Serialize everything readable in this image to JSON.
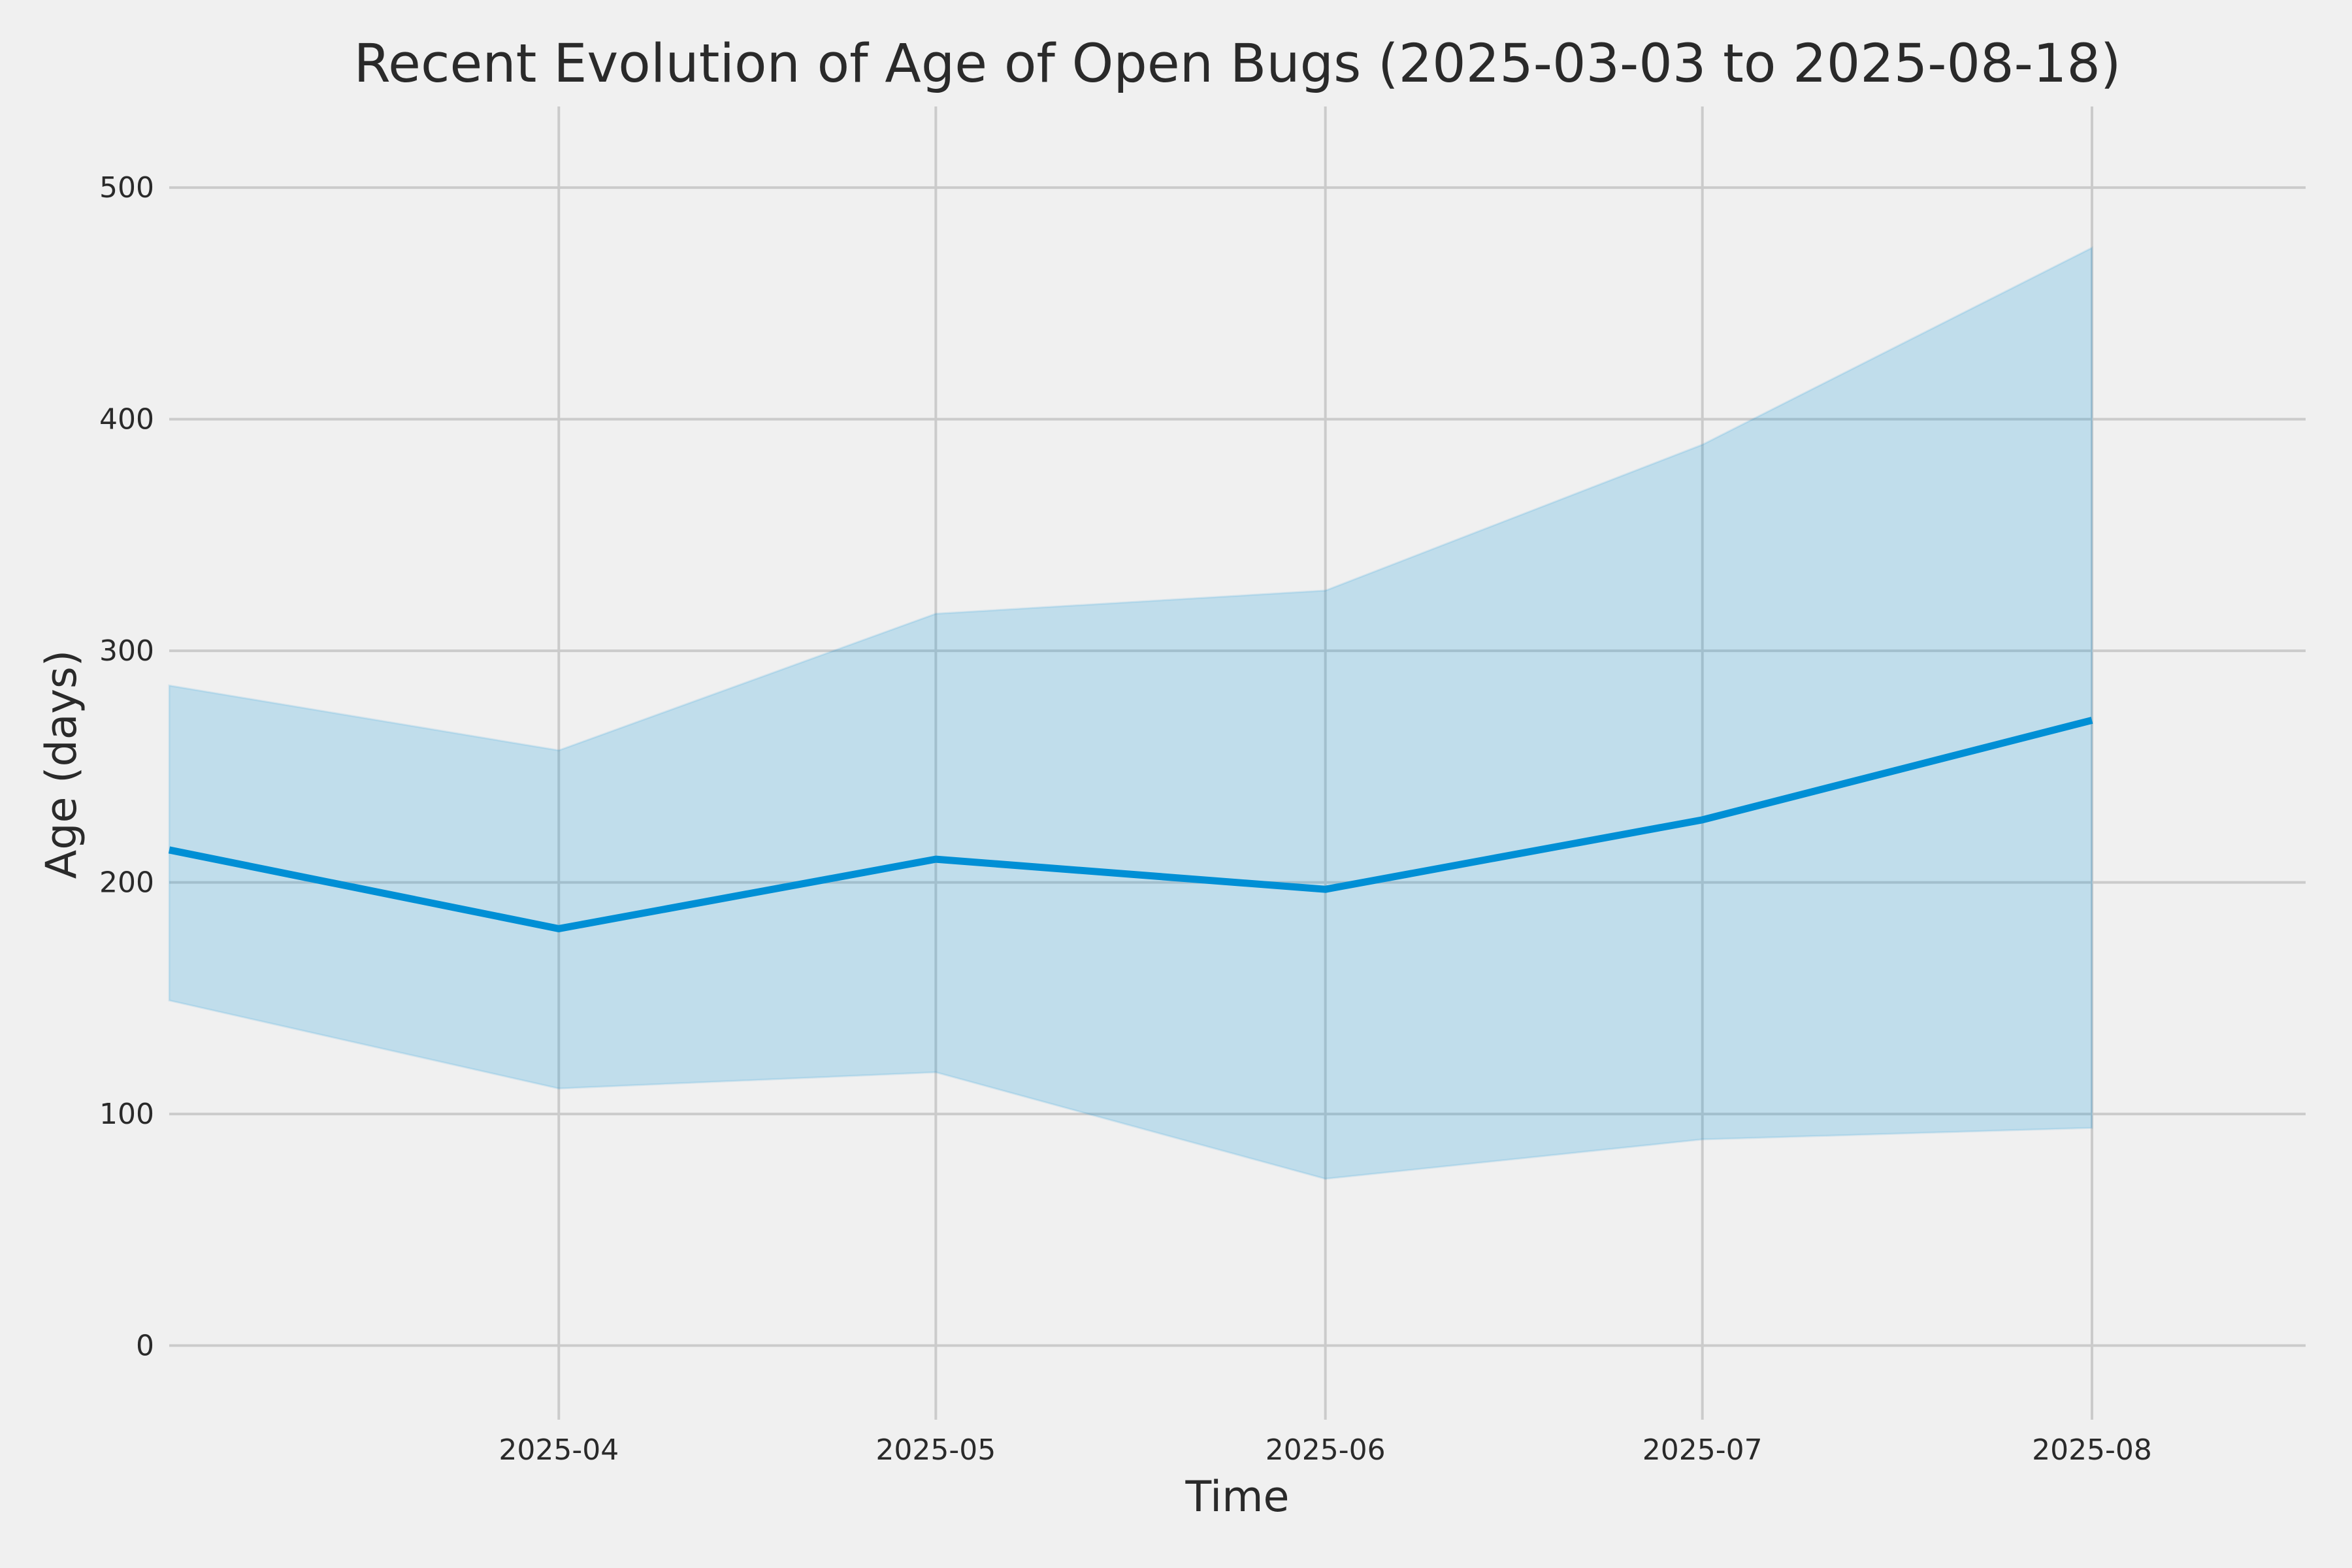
{
  "chart_data": {
    "type": "line",
    "title": "Recent Evolution of Age of Open Bugs (2025-03-03 to 2025-08-18)",
    "xlabel": "Time",
    "ylabel": "Age (days)",
    "x": [
      "2025-03-01",
      "2025-04-01",
      "2025-05-01",
      "2025-06-01",
      "2025-07-01",
      "2025-08-01"
    ],
    "xlim": [
      "2025-03-01",
      "2025-08-18"
    ],
    "ylim": [
      -32,
      535
    ],
    "x_ticks": [
      "2025-04-01",
      "2025-05-01",
      "2025-06-01",
      "2025-07-01",
      "2025-08-01"
    ],
    "x_tick_labels": [
      "2025-04",
      "2025-05",
      "2025-06",
      "2025-07",
      "2025-08"
    ],
    "y_ticks": [
      0,
      100,
      200,
      300,
      400,
      500
    ],
    "y_tick_labels": [
      "0",
      "100",
      "200",
      "300",
      "400",
      "500"
    ],
    "grid": true,
    "series": [
      {
        "values": [
          214,
          180,
          210,
          197,
          227,
          270
        ],
        "color": "#008fd5"
      }
    ],
    "band": {
      "upper": [
        285,
        257,
        316,
        326,
        389,
        474
      ],
      "lower": [
        149,
        111,
        118,
        72,
        89,
        94
      ],
      "color": "#008fd5"
    }
  }
}
